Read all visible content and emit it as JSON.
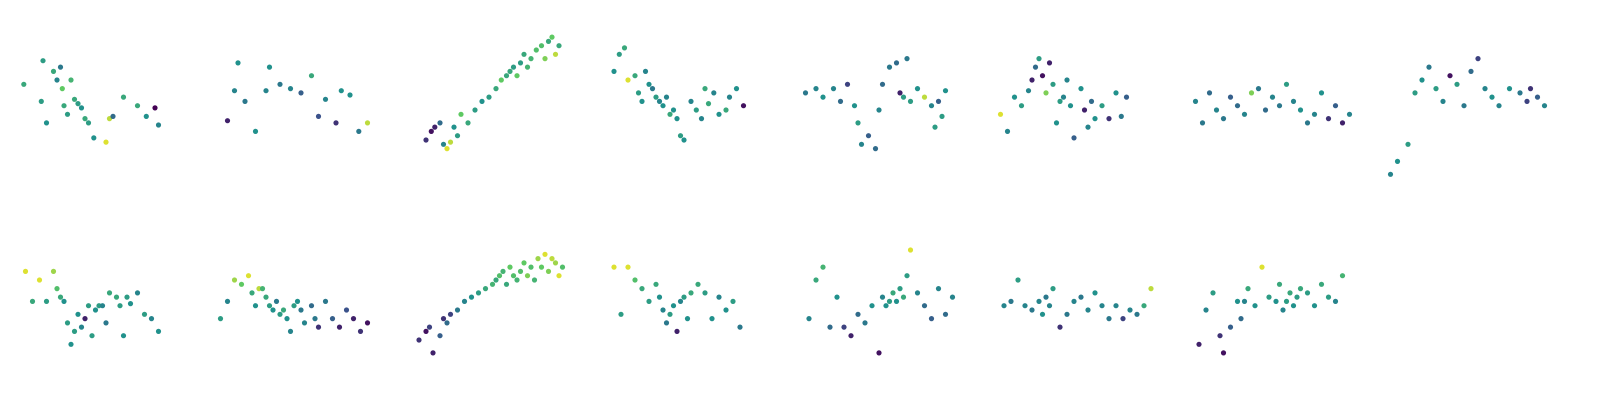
{
  "chart_data": [
    {
      "type": "scatter",
      "colormap": "viridis",
      "axes": "off",
      "x": [
        -4.5,
        -3.5,
        -3.4,
        -3.2,
        -2.8,
        -2.6,
        -2.4,
        -2.3,
        -2.2,
        -2.0,
        -1.8,
        -1.6,
        -1.4,
        -1.2,
        -1.0,
        -0.8,
        -0.5,
        0.2,
        0.4,
        0.6,
        1.2,
        2.0,
        2.5,
        3.0,
        3.2
      ],
      "y": [
        1.2,
        0.4,
        2.3,
        -0.6,
        1.8,
        1.4,
        2.0,
        1.0,
        0.2,
        -0.2,
        1.4,
        0.5,
        0.3,
        0.1,
        -0.4,
        -0.6,
        -1.3,
        -1.5,
        -0.4,
        -0.3,
        0.6,
        0.2,
        -0.3,
        0.1,
        -0.7
      ],
      "c": [
        0.6,
        0.55,
        0.55,
        0.5,
        0.6,
        0.45,
        0.4,
        0.75,
        0.6,
        0.55,
        0.65,
        0.6,
        0.55,
        0.5,
        0.6,
        0.55,
        0.5,
        0.95,
        0.9,
        0.35,
        0.6,
        0.6,
        0.5,
        0.0,
        0.45
      ]
    },
    {
      "type": "scatter",
      "colormap": "viridis",
      "axes": "off",
      "x": [
        -4.0,
        -3.6,
        -3.4,
        -3.0,
        -2.4,
        -1.8,
        -1.6,
        -1.0,
        -0.4,
        0.2,
        0.8,
        1.2,
        1.6,
        2.2,
        2.5,
        3.0,
        3.5,
        4.0
      ],
      "y": [
        -0.5,
        0.9,
        2.2,
        0.4,
        -1.0,
        0.9,
        2.0,
        1.2,
        1.0,
        0.8,
        1.6,
        -0.3,
        0.5,
        -0.6,
        0.9,
        0.7,
        -1.0,
        -0.6
      ],
      "c": [
        0.1,
        0.45,
        0.5,
        0.4,
        0.5,
        0.45,
        0.5,
        0.4,
        0.45,
        0.3,
        0.6,
        0.25,
        0.45,
        0.15,
        0.5,
        0.5,
        0.4,
        0.9
      ]
    },
    {
      "type": "scatter",
      "colormap": "viridis",
      "axes": "off",
      "x": [
        -3.8,
        -3.5,
        -3.3,
        -3.0,
        -2.8,
        -2.6,
        -2.4,
        -2.2,
        -2.0,
        -1.8,
        -1.4,
        -1.0,
        -0.6,
        -0.2,
        0.2,
        0.5,
        0.8,
        1.0,
        1.2,
        1.4,
        1.6,
        1.8,
        2.0,
        2.2,
        2.5,
        2.8,
        3.0,
        3.2,
        3.4,
        3.6,
        3.8
      ],
      "y": [
        -1.4,
        -1.0,
        -0.8,
        -0.6,
        -1.6,
        -1.8,
        -1.5,
        -0.8,
        -1.2,
        -0.2,
        -0.6,
        0.0,
        0.4,
        0.6,
        1.0,
        1.4,
        1.6,
        1.8,
        2.0,
        1.6,
        2.2,
        2.6,
        2.0,
        2.4,
        2.8,
        3.0,
        2.4,
        3.2,
        3.4,
        2.6,
        3.0
      ],
      "c": [
        0.15,
        0.05,
        0.1,
        0.35,
        0.45,
        0.95,
        0.9,
        0.5,
        0.55,
        0.75,
        0.6,
        0.55,
        0.5,
        0.55,
        0.6,
        0.75,
        0.6,
        0.6,
        0.55,
        0.75,
        0.55,
        0.6,
        0.65,
        0.65,
        0.7,
        0.7,
        0.8,
        0.6,
        0.75,
        0.9,
        0.6
      ]
    },
    {
      "type": "scatter",
      "colormap": "viridis",
      "axes": "off",
      "x": [
        -4.2,
        -3.9,
        -3.6,
        -3.4,
        -3.0,
        -2.8,
        -2.6,
        -2.4,
        -2.2,
        -2.0,
        -1.8,
        -1.6,
        -1.4,
        -1.2,
        -1.0,
        -0.8,
        -0.6,
        -0.4,
        -0.2,
        0.2,
        0.5,
        0.8,
        1.0,
        1.2,
        1.5,
        1.8,
        2.2,
        2.4,
        2.8,
        3.2
      ],
      "y": [
        1.8,
        2.6,
        2.9,
        1.4,
        1.6,
        0.8,
        0.4,
        1.8,
        1.2,
        1.0,
        0.6,
        0.4,
        0.2,
        0.6,
        -0.2,
        0.0,
        -0.4,
        -1.2,
        -1.4,
        0.4,
        0.0,
        -0.4,
        1.0,
        0.3,
        0.8,
        -0.2,
        0.0,
        0.6,
        1.0,
        0.2
      ],
      "c": [
        0.5,
        0.55,
        0.6,
        0.95,
        0.6,
        0.55,
        0.5,
        0.45,
        0.5,
        0.4,
        0.55,
        0.45,
        0.5,
        0.45,
        0.6,
        0.5,
        0.5,
        0.55,
        0.5,
        0.45,
        0.55,
        0.45,
        0.6,
        0.6,
        0.45,
        0.5,
        0.6,
        0.45,
        0.5,
        0.05
      ]
    },
    {
      "type": "scatter",
      "colormap": "viridis",
      "axes": "off",
      "x": [
        -4.4,
        -3.8,
        -3.4,
        -2.8,
        -2.4,
        -2.0,
        -1.6,
        -1.4,
        -1.2,
        -0.8,
        -0.4,
        -0.2,
        0.0,
        0.4,
        0.8,
        1.0,
        1.2,
        1.4,
        1.6,
        2.0,
        2.4,
        2.8,
        3.0,
        3.2,
        3.4,
        3.6
      ],
      "y": [
        0.8,
        1.0,
        0.6,
        1.0,
        0.4,
        1.2,
        0.2,
        -0.6,
        -1.6,
        -1.2,
        -1.8,
        0.0,
        1.2,
        2.0,
        2.2,
        0.8,
        0.6,
        2.4,
        0.4,
        1.0,
        0.6,
        0.2,
        -0.8,
        0.4,
        -0.3,
        0.9
      ],
      "c": [
        0.4,
        0.45,
        0.5,
        0.45,
        0.35,
        0.2,
        0.5,
        0.55,
        0.45,
        0.3,
        0.35,
        0.45,
        0.35,
        0.4,
        0.35,
        0.1,
        0.55,
        0.4,
        0.55,
        0.5,
        0.9,
        0.45,
        0.55,
        0.3,
        0.55,
        0.5
      ]
    },
    {
      "type": "scatter",
      "colormap": "viridis",
      "axes": "off",
      "x": [
        -4.4,
        -4.0,
        -3.6,
        -3.2,
        -2.8,
        -2.6,
        -2.4,
        -2.2,
        -2.0,
        -1.8,
        -1.6,
        -1.4,
        -1.2,
        -1.0,
        -0.8,
        -0.6,
        -0.4,
        -0.2,
        0.2,
        0.4,
        0.6,
        0.8,
        1.0,
        1.4,
        1.8,
        2.2,
        2.5,
        2.8
      ],
      "y": [
        -0.2,
        -1.0,
        0.6,
        0.2,
        0.9,
        1.4,
        2.0,
        2.4,
        1.6,
        0.8,
        2.2,
        1.2,
        -0.6,
        0.4,
        0.6,
        1.4,
        0.2,
        -1.3,
        1.0,
        0.0,
        -0.8,
        0.4,
        -0.4,
        0.2,
        -0.4,
        0.8,
        -0.3,
        0.6
      ],
      "c": [
        0.95,
        0.45,
        0.5,
        0.55,
        0.45,
        0.1,
        0.35,
        0.55,
        0.05,
        0.8,
        0.1,
        0.55,
        0.5,
        0.55,
        0.45,
        0.45,
        0.5,
        0.3,
        0.5,
        0.1,
        0.45,
        0.35,
        0.5,
        0.55,
        0.15,
        0.5,
        0.4,
        0.3
      ]
    },
    {
      "type": "scatter",
      "colormap": "viridis",
      "axes": "off",
      "x": [
        -4.4,
        -4.0,
        -3.6,
        -3.2,
        -2.8,
        -2.4,
        -2.0,
        -1.6,
        -1.2,
        -0.8,
        -0.4,
        0.0,
        0.4,
        0.8,
        1.2,
        1.6,
        2.0,
        2.4,
        2.8,
        3.2,
        3.6,
        4.0,
        4.4
      ],
      "y": [
        0.4,
        -0.6,
        0.8,
        0.0,
        -0.4,
        0.6,
        0.2,
        -0.2,
        0.8,
        1.0,
        0.0,
        0.6,
        0.2,
        1.2,
        0.4,
        0.0,
        -0.6,
        -0.2,
        0.8,
        -0.4,
        0.2,
        -0.6,
        -0.2
      ],
      "c": [
        0.45,
        0.4,
        0.35,
        0.45,
        0.4,
        0.3,
        0.35,
        0.45,
        0.8,
        0.4,
        0.35,
        0.45,
        0.4,
        0.55,
        0.45,
        0.5,
        0.4,
        0.45,
        0.5,
        0.15,
        0.3,
        0.1,
        0.45
      ]
    },
    {
      "type": "scatter",
      "colormap": "viridis",
      "axes": "off",
      "x": [
        -4.4,
        -4.0,
        -3.4,
        -3.0,
        -2.6,
        -2.2,
        -1.8,
        -1.4,
        -1.0,
        -0.6,
        -0.2,
        0.2,
        0.6,
        1.0,
        1.4,
        1.8,
        2.4,
        3.0,
        3.4,
        3.6,
        4.0,
        4.4
      ],
      "y": [
        -3.0,
        -2.4,
        -1.6,
        0.8,
        1.4,
        2.0,
        1.0,
        0.4,
        1.6,
        1.2,
        0.2,
        1.8,
        2.4,
        1.0,
        0.6,
        0.2,
        1.0,
        0.8,
        0.4,
        1.0,
        0.6,
        0.2
      ],
      "c": [
        0.45,
        0.5,
        0.55,
        0.55,
        0.5,
        0.4,
        0.55,
        0.45,
        0.05,
        0.55,
        0.4,
        0.35,
        0.2,
        0.45,
        0.5,
        0.45,
        0.5,
        0.4,
        0.2,
        0.15,
        0.3,
        0.45
      ]
    },
    {
      "type": "scatter",
      "colormap": "viridis",
      "axes": "off",
      "x": [
        -4.4,
        -4.0,
        -3.6,
        -3.2,
        -2.8,
        -2.6,
        -2.4,
        -2.2,
        -2.0,
        -1.8,
        -1.6,
        -1.4,
        -1.2,
        -1.0,
        -0.8,
        -0.6,
        -0.4,
        -0.2,
        0.0,
        0.2,
        0.4,
        0.8,
        1.0,
        1.2,
        1.4,
        1.6,
        2.0,
        2.4,
        2.8,
        3.2
      ],
      "y": [
        1.8,
        0.4,
        1.4,
        0.4,
        1.8,
        1.0,
        0.6,
        0.4,
        -0.6,
        -1.6,
        -1.0,
        -0.2,
        -0.8,
        -0.4,
        0.2,
        -1.2,
        0.0,
        0.2,
        0.2,
        -0.6,
        0.8,
        0.6,
        0.2,
        -1.2,
        0.6,
        0.3,
        0.8,
        -0.2,
        -0.4,
        -1.0
      ],
      "c": [
        0.95,
        0.6,
        0.95,
        0.55,
        0.85,
        0.7,
        0.6,
        0.5,
        0.55,
        0.5,
        0.55,
        0.5,
        0.45,
        0.1,
        0.55,
        0.55,
        0.5,
        0.55,
        0.45,
        0.4,
        0.6,
        0.6,
        0.55,
        0.5,
        0.55,
        0.5,
        0.45,
        0.55,
        0.45,
        0.5
      ]
    },
    {
      "type": "scatter",
      "colormap": "viridis",
      "axes": "off",
      "x": [
        -4.4,
        -4.0,
        -3.6,
        -3.2,
        -2.8,
        -2.6,
        -2.4,
        -2.2,
        -2.0,
        -1.8,
        -1.6,
        -1.4,
        -1.2,
        -1.0,
        -0.8,
        -0.6,
        -0.4,
        -0.2,
        0.0,
        0.2,
        0.4,
        0.8,
        1.0,
        1.2,
        1.6,
        2.0,
        2.4,
        2.8,
        3.2,
        3.6,
        4.0
      ],
      "y": [
        -0.4,
        0.4,
        1.4,
        1.2,
        1.6,
        0.8,
        0.2,
        1.0,
        1.0,
        0.6,
        0.2,
        0.0,
        0.4,
        -0.2,
        0.0,
        -0.4,
        -1.0,
        0.2,
        0.4,
        0.0,
        -0.6,
        0.2,
        -0.4,
        -0.8,
        0.4,
        -0.4,
        -0.8,
        0.0,
        -0.4,
        -1.0,
        -0.6
      ],
      "c": [
        0.55,
        0.45,
        0.85,
        0.75,
        0.95,
        0.6,
        0.5,
        0.9,
        0.65,
        0.6,
        0.55,
        0.5,
        0.4,
        0.55,
        0.6,
        0.5,
        0.45,
        0.55,
        0.5,
        0.4,
        0.45,
        0.35,
        0.4,
        0.15,
        0.4,
        0.3,
        0.1,
        0.25,
        0.1,
        0.15,
        0.05
      ]
    },
    {
      "type": "scatter",
      "colormap": "viridis",
      "axes": "off",
      "x": [
        -4.2,
        -3.8,
        -3.6,
        -3.4,
        -3.0,
        -2.8,
        -2.6,
        -2.4,
        -2.0,
        -1.6,
        -1.2,
        -0.8,
        -0.4,
        0.0,
        0.2,
        0.4,
        0.6,
        0.8,
        1.0,
        1.2,
        1.4,
        1.6,
        1.8,
        2.0,
        2.2,
        2.4,
        2.6,
        2.8,
        3.0,
        3.2,
        3.4,
        3.6,
        3.8,
        4.0
      ],
      "y": [
        -1.4,
        -1.0,
        -0.8,
        -2.0,
        -1.2,
        -0.4,
        -0.6,
        -0.2,
        0.0,
        0.4,
        0.6,
        0.8,
        1.0,
        1.2,
        1.4,
        1.6,
        1.8,
        1.2,
        2.0,
        1.6,
        1.4,
        1.8,
        2.2,
        1.6,
        2.0,
        1.4,
        2.4,
        2.0,
        2.6,
        1.8,
        2.4,
        2.2,
        1.6,
        2.0
      ],
      "c": [
        0.15,
        0.05,
        0.2,
        0.1,
        0.3,
        0.15,
        0.35,
        0.2,
        0.4,
        0.45,
        0.5,
        0.55,
        0.6,
        0.65,
        0.6,
        0.7,
        0.65,
        0.6,
        0.75,
        0.7,
        0.65,
        0.7,
        0.75,
        0.8,
        0.7,
        0.65,
        0.85,
        0.75,
        0.95,
        0.8,
        0.9,
        0.85,
        0.95,
        0.7
      ]
    },
    {
      "type": "scatter",
      "colormap": "viridis",
      "axes": "off",
      "x": [
        -4.2,
        -3.8,
        -3.4,
        -3.0,
        -2.6,
        -2.2,
        -1.8,
        -1.6,
        -1.4,
        -1.2,
        -1.0,
        -0.8,
        -0.6,
        -0.4,
        -0.2,
        0.0,
        0.2,
        0.6,
        1.0,
        1.4,
        1.8,
        2.2,
        2.6,
        3.0
      ],
      "y": [
        2.0,
        -0.2,
        2.0,
        1.4,
        1.0,
        0.4,
        1.2,
        0.6,
        0.0,
        -0.6,
        -0.2,
        0.2,
        -1.0,
        0.4,
        0.6,
        -0.4,
        0.8,
        1.2,
        0.8,
        -0.4,
        0.6,
        0.0,
        0.4,
        -0.8
      ],
      "c": [
        0.95,
        0.55,
        0.95,
        0.7,
        0.6,
        0.55,
        0.6,
        0.5,
        0.45,
        0.4,
        0.55,
        0.5,
        0.1,
        0.45,
        0.55,
        0.5,
        0.6,
        0.6,
        0.55,
        0.5,
        0.45,
        0.5,
        0.55,
        0.4
      ]
    },
    {
      "type": "scatter",
      "colormap": "viridis",
      "axes": "off",
      "x": [
        -4.2,
        -3.8,
        -3.4,
        -3.0,
        -2.6,
        -2.2,
        -1.8,
        -1.4,
        -1.0,
        -0.6,
        -0.2,
        0.0,
        0.2,
        0.4,
        0.6,
        0.8,
        1.0,
        1.2,
        1.4,
        1.6,
        2.0,
        2.4,
        2.8,
        3.2,
        3.6,
        4.0
      ],
      "y": [
        -0.4,
        1.4,
        2.0,
        -0.8,
        0.6,
        -0.8,
        -1.2,
        -0.2,
        -0.6,
        0.2,
        -2.0,
        0.6,
        0.2,
        0.4,
        0.8,
        0.4,
        1.0,
        0.6,
        1.6,
        2.8,
        0.8,
        0.2,
        -0.4,
        1.0,
        -0.2,
        0.6
      ],
      "c": [
        0.45,
        0.6,
        0.65,
        0.35,
        0.5,
        0.2,
        0.1,
        0.35,
        0.4,
        0.5,
        0.05,
        0.45,
        0.5,
        0.55,
        0.6,
        0.5,
        0.55,
        0.6,
        0.55,
        0.95,
        0.45,
        0.35,
        0.3,
        0.45,
        0.35,
        0.45
      ]
    },
    {
      "type": "scatter",
      "colormap": "viridis",
      "axes": "off",
      "x": [
        -4.2,
        -3.8,
        -3.4,
        -3.0,
        -2.6,
        -2.2,
        -2.0,
        -1.8,
        -1.6,
        -1.4,
        -1.0,
        -0.6,
        -0.2,
        0.2,
        0.6,
        1.0,
        1.4,
        1.8,
        2.2,
        2.6,
        3.0,
        3.4,
        3.8,
        4.2
      ],
      "y": [
        0.2,
        0.4,
        1.4,
        0.2,
        0.0,
        0.4,
        -0.2,
        0.6,
        0.2,
        1.0,
        -0.8,
        -0.2,
        0.4,
        0.6,
        0.0,
        0.8,
        0.2,
        -0.4,
        0.2,
        -0.4,
        0.0,
        -0.2,
        0.2,
        1.0
      ],
      "c": [
        0.45,
        0.4,
        0.55,
        0.45,
        0.4,
        0.45,
        0.5,
        0.4,
        0.45,
        0.55,
        0.15,
        0.4,
        0.45,
        0.4,
        0.45,
        0.5,
        0.45,
        0.4,
        0.45,
        0.2,
        0.45,
        0.4,
        0.6,
        0.9
      ]
    },
    {
      "type": "scatter",
      "colormap": "viridis",
      "axes": "off",
      "x": [
        -4.2,
        -3.8,
        -3.4,
        -3.0,
        -2.8,
        -2.4,
        -2.0,
        -1.8,
        -1.6,
        -1.4,
        -1.0,
        -0.6,
        -0.2,
        0.2,
        0.4,
        0.6,
        0.8,
        1.0,
        1.2,
        1.4,
        1.6,
        2.0,
        2.4,
        2.8,
        3.2,
        3.6,
        4.0
      ],
      "y": [
        -1.6,
        0.0,
        0.8,
        -1.2,
        -2.0,
        -0.8,
        0.4,
        -0.4,
        0.4,
        1.0,
        0.2,
        2.0,
        0.6,
        0.4,
        1.2,
        0.0,
        0.4,
        0.8,
        0.2,
        0.6,
        1.0,
        0.8,
        0.2,
        1.2,
        0.6,
        0.4,
        1.6
      ],
      "c": [
        0.1,
        0.45,
        0.55,
        0.15,
        0.05,
        0.3,
        0.5,
        0.35,
        0.45,
        0.6,
        0.5,
        0.95,
        0.55,
        0.5,
        0.6,
        0.45,
        0.55,
        0.6,
        0.5,
        0.55,
        0.6,
        0.55,
        0.5,
        0.6,
        0.55,
        0.45,
        0.65
      ]
    }
  ]
}
